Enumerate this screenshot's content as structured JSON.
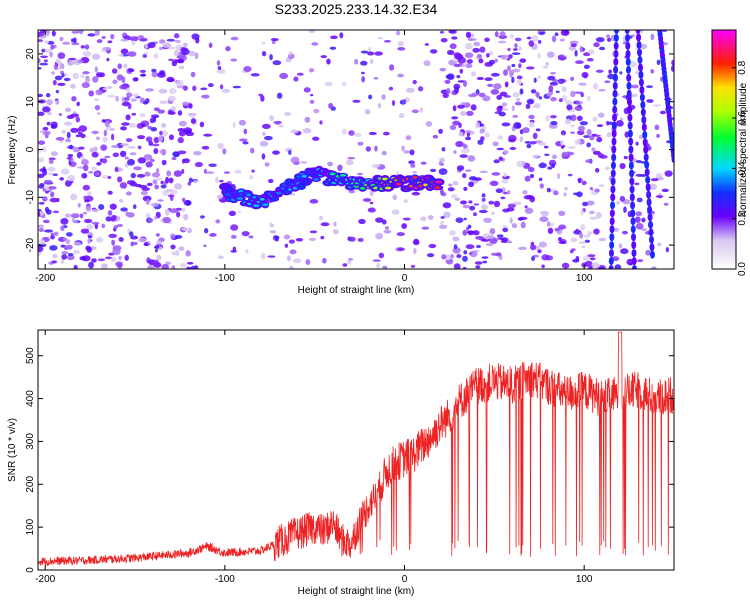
{
  "title": "S233.2025.233.14.32.E34",
  "chart_data": [
    {
      "type": "heatmap",
      "name": "spectrogram",
      "xlabel": "Height of straight line (km)",
      "ylabel": "Frequency (Hz)",
      "xlim": [
        -204,
        150
      ],
      "ylim": [
        -25,
        25
      ],
      "xticks": [
        -200,
        -100,
        0,
        100
      ],
      "yticks": [
        -20,
        -10,
        0,
        10,
        20
      ],
      "colorbar": {
        "label": "Normalized spectral amplitude",
        "range": [
          0,
          0.95
        ],
        "ticks": [
          0.0,
          0.2,
          0.4,
          0.6,
          0.8
        ],
        "tick_labels": [
          "0.0",
          "0.2",
          "0.4",
          "0.6",
          "0.8"
        ]
      },
      "ridge": {
        "description": "high-amplitude frequency trace",
        "x": [
          -100,
          -90,
          -80,
          -70,
          -60,
          -50,
          -40,
          -30,
          -20,
          -10,
          0,
          10,
          20
        ],
        "freq": [
          -9,
          -10,
          -11,
          -9,
          -7,
          -5,
          -6,
          -7,
          -7,
          -7,
          -7,
          -7,
          -7
        ],
        "amplitude": [
          0.3,
          0.4,
          0.5,
          0.35,
          0.4,
          0.35,
          0.5,
          0.45,
          0.6,
          0.75,
          0.85,
          0.9,
          0.85
        ]
      }
    },
    {
      "type": "line",
      "name": "snr",
      "xlabel": "Height of straight line (km)",
      "ylabel": "SNR (10 * v/v)",
      "xlim": [
        -204,
        150
      ],
      "ylim": [
        0,
        560
      ],
      "xticks": [
        -200,
        -100,
        0,
        100
      ],
      "yticks": [
        0,
        100,
        200,
        300,
        400,
        500
      ],
      "color": "#ee2222",
      "series": [
        {
          "name": "SNR",
          "x": [
            -204,
            -180,
            -150,
            -120,
            -110,
            -100,
            -80,
            -70,
            -60,
            -50,
            -45,
            -40,
            -35,
            -30,
            -25,
            -20,
            -15,
            -10,
            -5,
            0,
            5,
            10,
            15,
            20,
            25,
            30,
            40,
            50,
            60,
            70,
            80,
            90,
            100,
            110,
            120,
            130,
            140,
            150
          ],
          "y": [
            20,
            22,
            28,
            40,
            55,
            40,
            45,
            65,
            85,
            100,
            90,
            110,
            70,
            60,
            110,
            150,
            180,
            230,
            250,
            260,
            270,
            290,
            310,
            340,
            360,
            390,
            430,
            440,
            430,
            450,
            430,
            410,
            420,
            400,
            410,
            420,
            400,
            410
          ]
        }
      ]
    }
  ]
}
